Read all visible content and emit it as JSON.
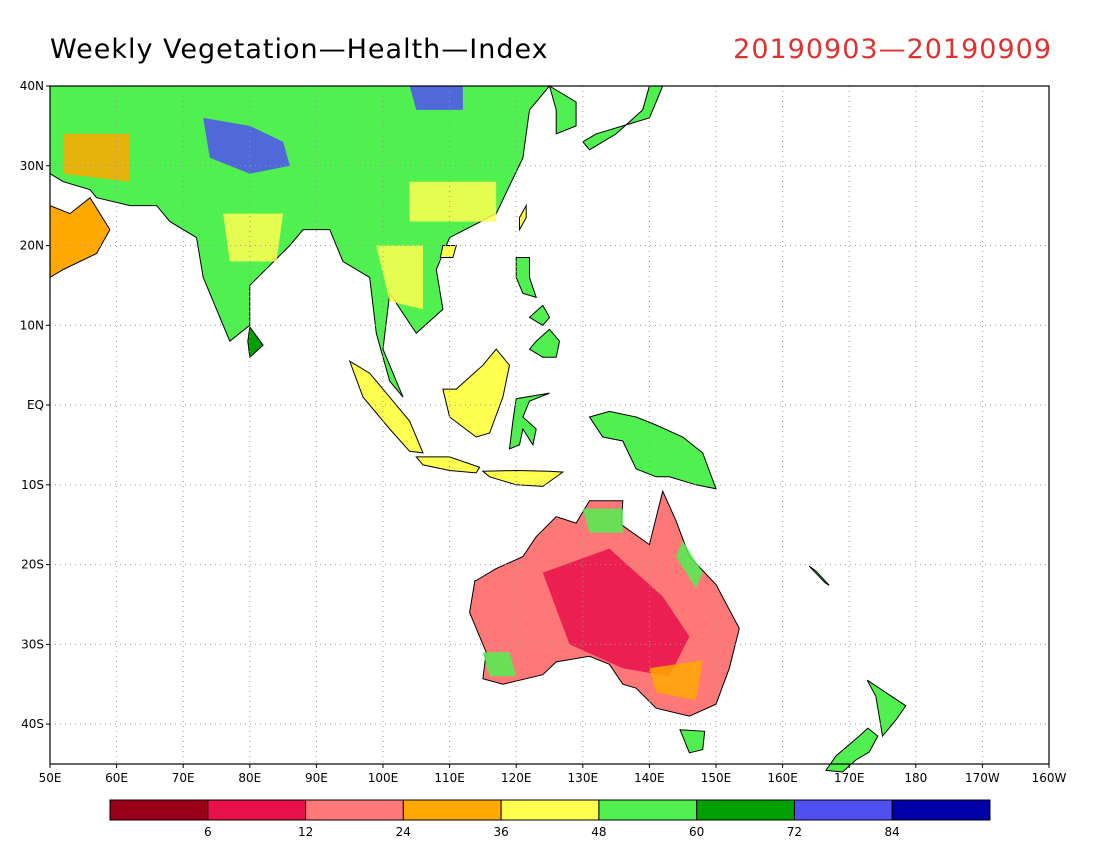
{
  "title": "Weekly Vegetation—Health—Index",
  "date_range": "20190903—20190909",
  "map": {
    "lon_range": [
      50,
      200
    ],
    "lat_range": [
      -45,
      40
    ],
    "lat_ticks": [
      {
        "value": 40,
        "label": "40N"
      },
      {
        "value": 30,
        "label": "30N"
      },
      {
        "value": 20,
        "label": "20N"
      },
      {
        "value": 10,
        "label": "10N"
      },
      {
        "value": 0,
        "label": "EQ"
      },
      {
        "value": -10,
        "label": "10S"
      },
      {
        "value": -20,
        "label": "20S"
      },
      {
        "value": -30,
        "label": "30S"
      },
      {
        "value": -40,
        "label": "40S"
      }
    ],
    "lon_ticks": [
      {
        "value": 50,
        "label": "50E"
      },
      {
        "value": 60,
        "label": "60E"
      },
      {
        "value": 70,
        "label": "70E"
      },
      {
        "value": 80,
        "label": "80E"
      },
      {
        "value": 90,
        "label": "90E"
      },
      {
        "value": 100,
        "label": "100E"
      },
      {
        "value": 110,
        "label": "110E"
      },
      {
        "value": 120,
        "label": "120E"
      },
      {
        "value": 130,
        "label": "130E"
      },
      {
        "value": 140,
        "label": "140E"
      },
      {
        "value": 150,
        "label": "150E"
      },
      {
        "value": 160,
        "label": "160E"
      },
      {
        "value": 170,
        "label": "170E"
      },
      {
        "value": 180,
        "label": "180"
      },
      {
        "value": 190,
        "label": "170W"
      },
      {
        "value": 200,
        "label": "160W"
      }
    ],
    "grid": true
  },
  "legend": {
    "colors": [
      "#9a0018",
      "#e8104a",
      "#ff7878",
      "#ffa800",
      "#ffff50",
      "#50f050",
      "#00a000",
      "#5050f0",
      "#0000a8"
    ],
    "labels": [
      "6",
      "12",
      "24",
      "36",
      "48",
      "60",
      "72",
      "84"
    ]
  }
}
